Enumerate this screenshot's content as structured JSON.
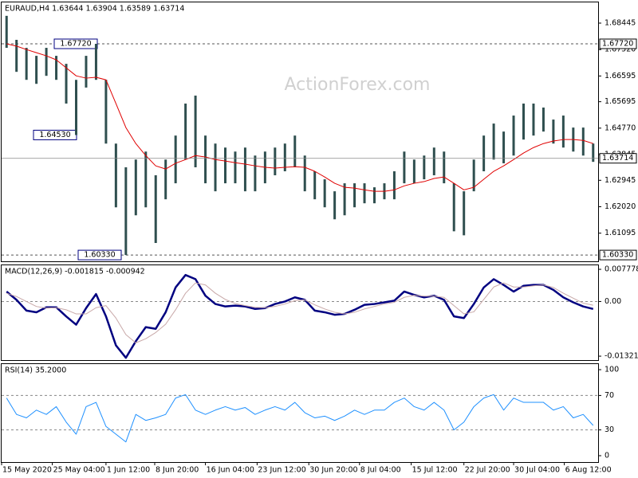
{
  "chart_data": [
    {
      "type": "ohlc",
      "title": "EURAUD,H4  1.63644 1.63904 1.63589 1.63714",
      "watermark": "ActionForex.com",
      "xlim": [
        -0.5,
        59.5
      ],
      "ylim": [
        1.6011,
        1.6917
      ],
      "yticks": [
        {
          "value": 1.68445,
          "label": "1.68445"
        },
        {
          "value": 1.6752,
          "label": "1.67520"
        },
        {
          "value": 1.66595,
          "label": "1.66595"
        },
        {
          "value": 1.65695,
          "label": "1.65695"
        },
        {
          "value": 1.6477,
          "label": "1.64770"
        },
        {
          "value": 1.63845,
          "label": "1.63845"
        },
        {
          "value": 1.62945,
          "label": "1.62945"
        },
        {
          "value": 1.6202,
          "label": "1.62020"
        },
        {
          "value": 1.61095,
          "label": "1.61095"
        }
      ],
      "bar_color": "#2f4f4f",
      "high": [
        1.687,
        1.6786,
        1.6758,
        1.673,
        1.6758,
        1.673,
        1.6702,
        1.6646,
        1.673,
        1.6772,
        1.6646,
        1.6423,
        1.634,
        1.6367,
        1.6395,
        1.6312,
        1.6367,
        1.6451,
        1.6563,
        1.6591,
        1.6451,
        1.6423,
        1.6409,
        1.6395,
        1.6409,
        1.6381,
        1.6395,
        1.6409,
        1.6423,
        1.6451,
        1.6381,
        1.6326,
        1.6298,
        1.6256,
        1.6284,
        1.6284,
        1.6284,
        1.627,
        1.6284,
        1.6326,
        1.6395,
        1.6367,
        1.6381,
        1.6409,
        1.6395,
        1.6284,
        1.6256,
        1.6367,
        1.6451,
        1.6493,
        1.6465,
        1.6521,
        1.6563,
        1.6563,
        1.6549,
        1.6507,
        1.6521,
        1.6479,
        1.6479,
        1.6423
      ],
      "low": [
        1.6758,
        1.6674,
        1.6646,
        1.6632,
        1.666,
        1.6646,
        1.6563,
        1.6453,
        1.6619,
        1.6646,
        1.6423,
        1.62,
        1.6033,
        1.6172,
        1.62,
        1.6075,
        1.6228,
        1.6284,
        1.6367,
        1.634,
        1.6284,
        1.6256,
        1.6284,
        1.6284,
        1.6256,
        1.6256,
        1.6284,
        1.6312,
        1.6326,
        1.634,
        1.6256,
        1.6228,
        1.62,
        1.6158,
        1.6172,
        1.62,
        1.6214,
        1.6214,
        1.6228,
        1.6228,
        1.6284,
        1.6284,
        1.6298,
        1.6312,
        1.6284,
        1.6116,
        1.6102,
        1.6256,
        1.6326,
        1.6367,
        1.6354,
        1.6381,
        1.6437,
        1.6451,
        1.6465,
        1.6423,
        1.6409,
        1.6395,
        1.6381,
        1.6359
      ],
      "ma": {
        "color": "#e00000",
        "values": [
          1.6772,
          1.6764,
          1.6752,
          1.6741,
          1.673,
          1.6716,
          1.6688,
          1.666,
          1.6652,
          1.6655,
          1.6646,
          1.6563,
          1.6479,
          1.6423,
          1.6381,
          1.6345,
          1.6334,
          1.6354,
          1.6367,
          1.6381,
          1.6376,
          1.6367,
          1.6362,
          1.6356,
          1.6351,
          1.6345,
          1.634,
          1.6337,
          1.634,
          1.6342,
          1.634,
          1.6326,
          1.6306,
          1.6284,
          1.627,
          1.6267,
          1.6261,
          1.6256,
          1.6256,
          1.6261,
          1.6275,
          1.6284,
          1.629,
          1.6301,
          1.6306,
          1.6284,
          1.6261,
          1.627,
          1.6298,
          1.6326,
          1.6345,
          1.6367,
          1.639,
          1.6409,
          1.6423,
          1.6432,
          1.6437,
          1.6437,
          1.6434,
          1.6423
        ]
      },
      "levels": [
        {
          "value": 1.6772,
          "label": "1.67720",
          "line": true
        },
        {
          "value": 1.6453,
          "label": "1.64530",
          "line": false
        },
        {
          "value": 1.6033,
          "label": "1.60330",
          "line": true
        }
      ],
      "last_price": 1.63714
    },
    {
      "type": "line",
      "title": "MACD(12,26,9) -0.001815 -0.000942",
      "xlim": [
        -0.5,
        59.5
      ],
      "ylim": [
        -0.01416,
        0.00875
      ],
      "yticks": [
        0.007778,
        {
          "value": 0,
          "label": "0.00"
        },
        -0.01321
      ],
      "levels": [
        0
      ],
      "series": [
        {
          "color": "#000080",
          "width": 2.5,
          "values": [
            0.0024,
            0.0004,
            -0.0022,
            -0.0026,
            -0.0014,
            -0.0014,
            -0.0036,
            -0.0056,
            -0.0016,
            0.0018,
            -0.0036,
            -0.0106,
            -0.0136,
            -0.0096,
            -0.0062,
            -0.0066,
            -0.0026,
            0.0034,
            0.0064,
            0.0054,
            0.0014,
            -0.0006,
            -0.0012,
            -0.001,
            -0.0012,
            -0.0018,
            -0.0016,
            -0.0006,
            0.0,
            0.001,
            0.0004,
            -0.0022,
            -0.0026,
            -0.0032,
            -0.003,
            -0.002,
            -0.0008,
            -0.0006,
            -0.0002,
            0.0002,
            0.0024,
            0.0016,
            0.001,
            0.0014,
            0.0004,
            -0.0036,
            -0.004,
            -0.0006,
            0.0034,
            0.0054,
            0.004,
            0.0024,
            0.0038,
            0.004,
            0.004,
            0.0028,
            0.001,
            -0.0002,
            -0.0012,
            -0.0018
          ]
        },
        {
          "color": "#c8a8a8",
          "width": 1,
          "values": [
            0.002,
            0.0012,
            0.0,
            -0.0012,
            -0.0016,
            -0.0015,
            -0.002,
            -0.003,
            -0.003,
            -0.0015,
            -0.001,
            -0.004,
            -0.008,
            -0.01,
            -0.009,
            -0.0075,
            -0.0055,
            -0.002,
            0.002,
            0.0045,
            0.004,
            0.002,
            0.0005,
            -0.0005,
            -0.001,
            -0.0014,
            -0.0015,
            -0.0012,
            -0.0006,
            0.0002,
            0.0004,
            -0.0008,
            -0.0018,
            -0.0026,
            -0.003,
            -0.0026,
            -0.0018,
            -0.0012,
            -0.0006,
            -0.0002,
            0.001,
            0.0015,
            0.0013,
            0.0013,
            0.001,
            -0.001,
            -0.003,
            -0.0025,
            0.0005,
            0.0035,
            0.0045,
            0.0035,
            0.0035,
            0.0038,
            0.004,
            0.0034,
            0.002,
            0.0008,
            -0.0004,
            -0.0009
          ]
        }
      ]
    },
    {
      "type": "line",
      "title": "RSI(14) 35.2000",
      "xlim": [
        -0.5,
        59.5
      ],
      "xticks": [
        {
          "value": -0.5,
          "label": "15 May 2020"
        },
        {
          "value": 4.6,
          "label": "25 May 04:00"
        },
        {
          "value": 10,
          "label": "1 Jun 12:00"
        },
        {
          "value": 14.9,
          "label": "8 Jun 20:00"
        },
        {
          "value": 20,
          "label": "16 Jun 04:00"
        },
        {
          "value": 25.2,
          "label": "23 Jun 12:00"
        },
        {
          "value": 30.4,
          "label": "30 Jun 20:00"
        },
        {
          "value": 35.5,
          "label": "8 Jul 04:00"
        },
        {
          "value": 40.7,
          "label": "15 Jul 12:00"
        },
        {
          "value": 46,
          "label": "22 Jul 20:00"
        },
        {
          "value": 51,
          "label": "30 Jul 04:00"
        },
        {
          "value": 56.1,
          "label": "6 Aug 12:00"
        }
      ],
      "ylim": [
        -7.4,
        106.5
      ],
      "yticks": [
        100,
        70,
        30,
        0
      ],
      "levels": [
        70,
        30
      ],
      "series": [
        {
          "color": "#1e90ff",
          "width": 1,
          "values": [
            67,
            48,
            44,
            53,
            48,
            57,
            39,
            25,
            57,
            62,
            34,
            25,
            16,
            48,
            41,
            44,
            48,
            67,
            71,
            53,
            48,
            53,
            57,
            53,
            56,
            48,
            53,
            57,
            53,
            62,
            50,
            44,
            46,
            41,
            46,
            53,
            48,
            53,
            53,
            62,
            67,
            57,
            53,
            62,
            53,
            30,
            39,
            57,
            67,
            71,
            53,
            67,
            62,
            62,
            62,
            53,
            57,
            44,
            48,
            35.2
          ]
        }
      ]
    }
  ]
}
